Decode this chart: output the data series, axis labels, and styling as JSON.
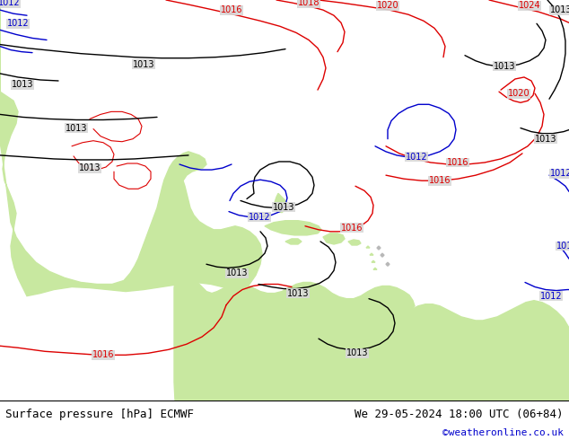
{
  "title_left": "Surface pressure [hPa] ECMWF",
  "title_right": "We 29-05-2024 18:00 UTC (06+84)",
  "watermark": "©weatheronline.co.uk",
  "ocean_color": "#d8d8d8",
  "land_green": "#c8e8a0",
  "land_gray": "#b8b8b8",
  "white_bg": "#ffffff",
  "figsize": [
    6.34,
    4.9
  ],
  "dpi": 100,
  "title_fontsize": 9,
  "watermark_fontsize": 8,
  "watermark_color": "#0000cc",
  "label_fs": 7
}
